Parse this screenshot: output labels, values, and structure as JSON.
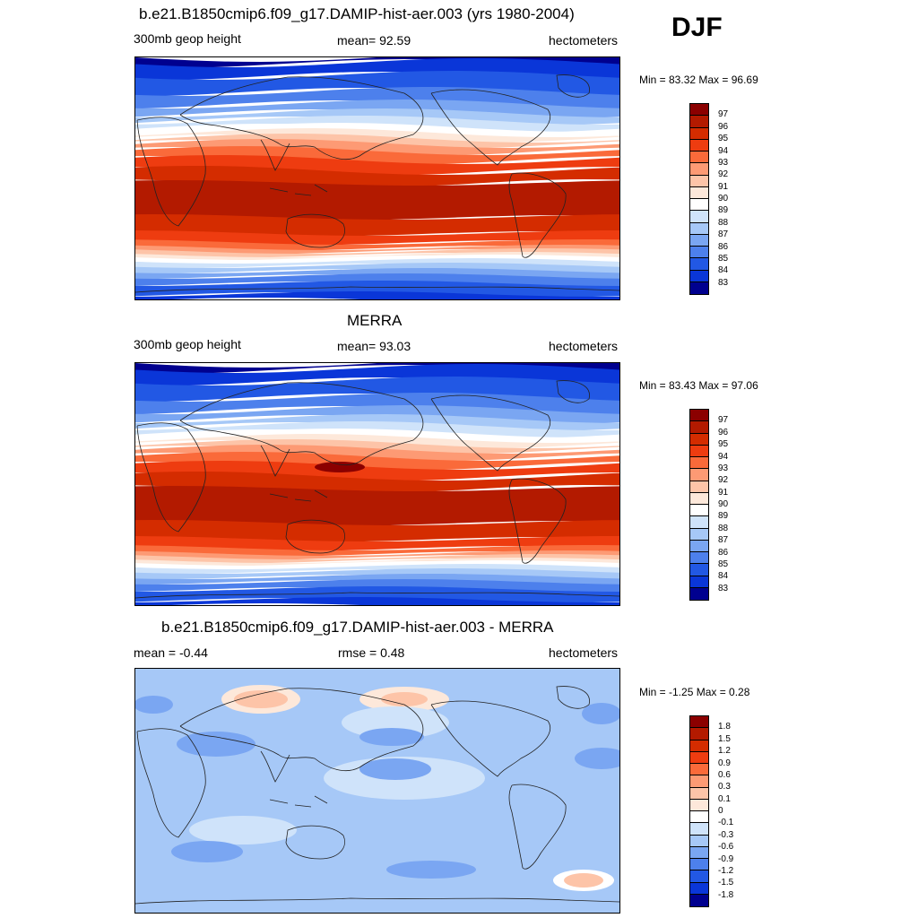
{
  "season": "DJF",
  "panels": [
    {
      "id": "model",
      "title": "b.e21.B1850cmip6.f09_g17.DAMIP-hist-aer.003 (yrs 1980-2004)",
      "left_text": "300mb geop height",
      "center_text": "mean=  92.59",
      "right_text": "hectometers",
      "minmax": "Min =  83.32 Max =  96.69",
      "colorbar_labels": [
        "97",
        "96",
        "95",
        "94",
        "93",
        "92",
        "91",
        "90",
        "89",
        "88",
        "87",
        "86",
        "85",
        "84",
        "83"
      ],
      "colorbar_colors": [
        "#8b0000",
        "#b31a00",
        "#d42c00",
        "#ee3c10",
        "#fa6a3a",
        "#fd9a74",
        "#fdc4a8",
        "#fde8da",
        "#ffffff",
        "#cfe3fa",
        "#a6c8f7",
        "#7aa6f2",
        "#4d80ec",
        "#2258e4",
        "#0a36d8",
        "#00008f"
      ],
      "field": "geop"
    },
    {
      "id": "obs",
      "title": "MERRA",
      "left_text": "300mb geop height",
      "center_text": "mean=  93.03",
      "right_text": "hectometers",
      "minmax": "Min =  83.43 Max =  97.06",
      "colorbar_labels": [
        "97",
        "96",
        "95",
        "94",
        "93",
        "92",
        "91",
        "90",
        "89",
        "88",
        "87",
        "86",
        "85",
        "84",
        "83"
      ],
      "colorbar_colors": [
        "#8b0000",
        "#b31a00",
        "#d42c00",
        "#ee3c10",
        "#fa6a3a",
        "#fd9a74",
        "#fdc4a8",
        "#fde8da",
        "#ffffff",
        "#cfe3fa",
        "#a6c8f7",
        "#7aa6f2",
        "#4d80ec",
        "#2258e4",
        "#0a36d8",
        "#00008f"
      ],
      "field": "geop"
    },
    {
      "id": "diff",
      "title": "b.e21.B1850cmip6.f09_g17.DAMIP-hist-aer.003 - MERRA",
      "left_text": "mean =  -0.44",
      "center_text": "rmse =   0.48",
      "right_text": "hectometers",
      "minmax": "Min =  -1.25 Max =   0.28",
      "colorbar_labels": [
        "1.8",
        "1.5",
        "1.2",
        "0.9",
        "0.6",
        "0.3",
        "0.1",
        "0",
        "-0.1",
        "-0.3",
        "-0.6",
        "-0.9",
        "-1.2",
        "-1.5",
        "-1.8"
      ],
      "colorbar_colors": [
        "#8b0000",
        "#b31a00",
        "#d42c00",
        "#ee3c10",
        "#fa6a3a",
        "#fd9a74",
        "#fdc4a8",
        "#fde8da",
        "#ffffff",
        "#cfe3fa",
        "#a6c8f7",
        "#7aa6f2",
        "#4d80ec",
        "#2258e4",
        "#0a36d8",
        "#00008f"
      ],
      "field": "diff"
    }
  ]
}
